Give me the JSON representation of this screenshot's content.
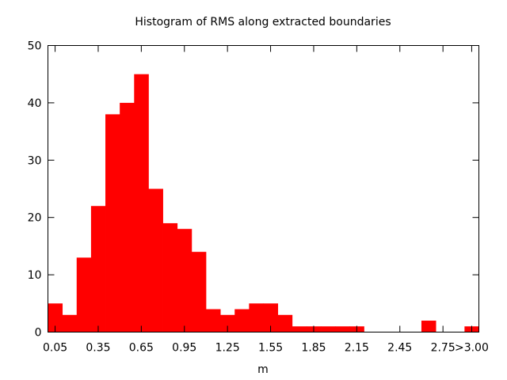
{
  "chart_data": {
    "type": "bar",
    "title": "Histogram of RMS along extracted boundaries",
    "xlabel": "m",
    "ylabel": "",
    "ylim": [
      0,
      50
    ],
    "yticks": [
      0,
      10,
      20,
      30,
      40,
      50
    ],
    "xticks": [
      "0.05",
      "0.35",
      "0.65",
      "0.95",
      "1.25",
      "1.55",
      "1.85",
      "2.15",
      "2.45",
      "2.75",
      ">3.00"
    ],
    "bin_width": 0.1,
    "bin_centers": [
      0.05,
      0.15,
      0.25,
      0.35,
      0.45,
      0.55,
      0.65,
      0.75,
      0.85,
      0.95,
      1.05,
      1.15,
      1.25,
      1.35,
      1.45,
      1.55,
      1.65,
      1.75,
      1.85,
      1.95,
      2.05,
      2.15,
      2.25,
      2.35,
      2.45,
      2.55,
      2.65,
      2.75,
      2.85,
      2.95
    ],
    "values": [
      5,
      3,
      13,
      22,
      38,
      40,
      45,
      25,
      19,
      18,
      14,
      4,
      3,
      4,
      5,
      5,
      3,
      1,
      1,
      1,
      1,
      1,
      0,
      0,
      0,
      0,
      2,
      0,
      0,
      1
    ],
    "bar_color": "#ff0000",
    "grid": false
  }
}
